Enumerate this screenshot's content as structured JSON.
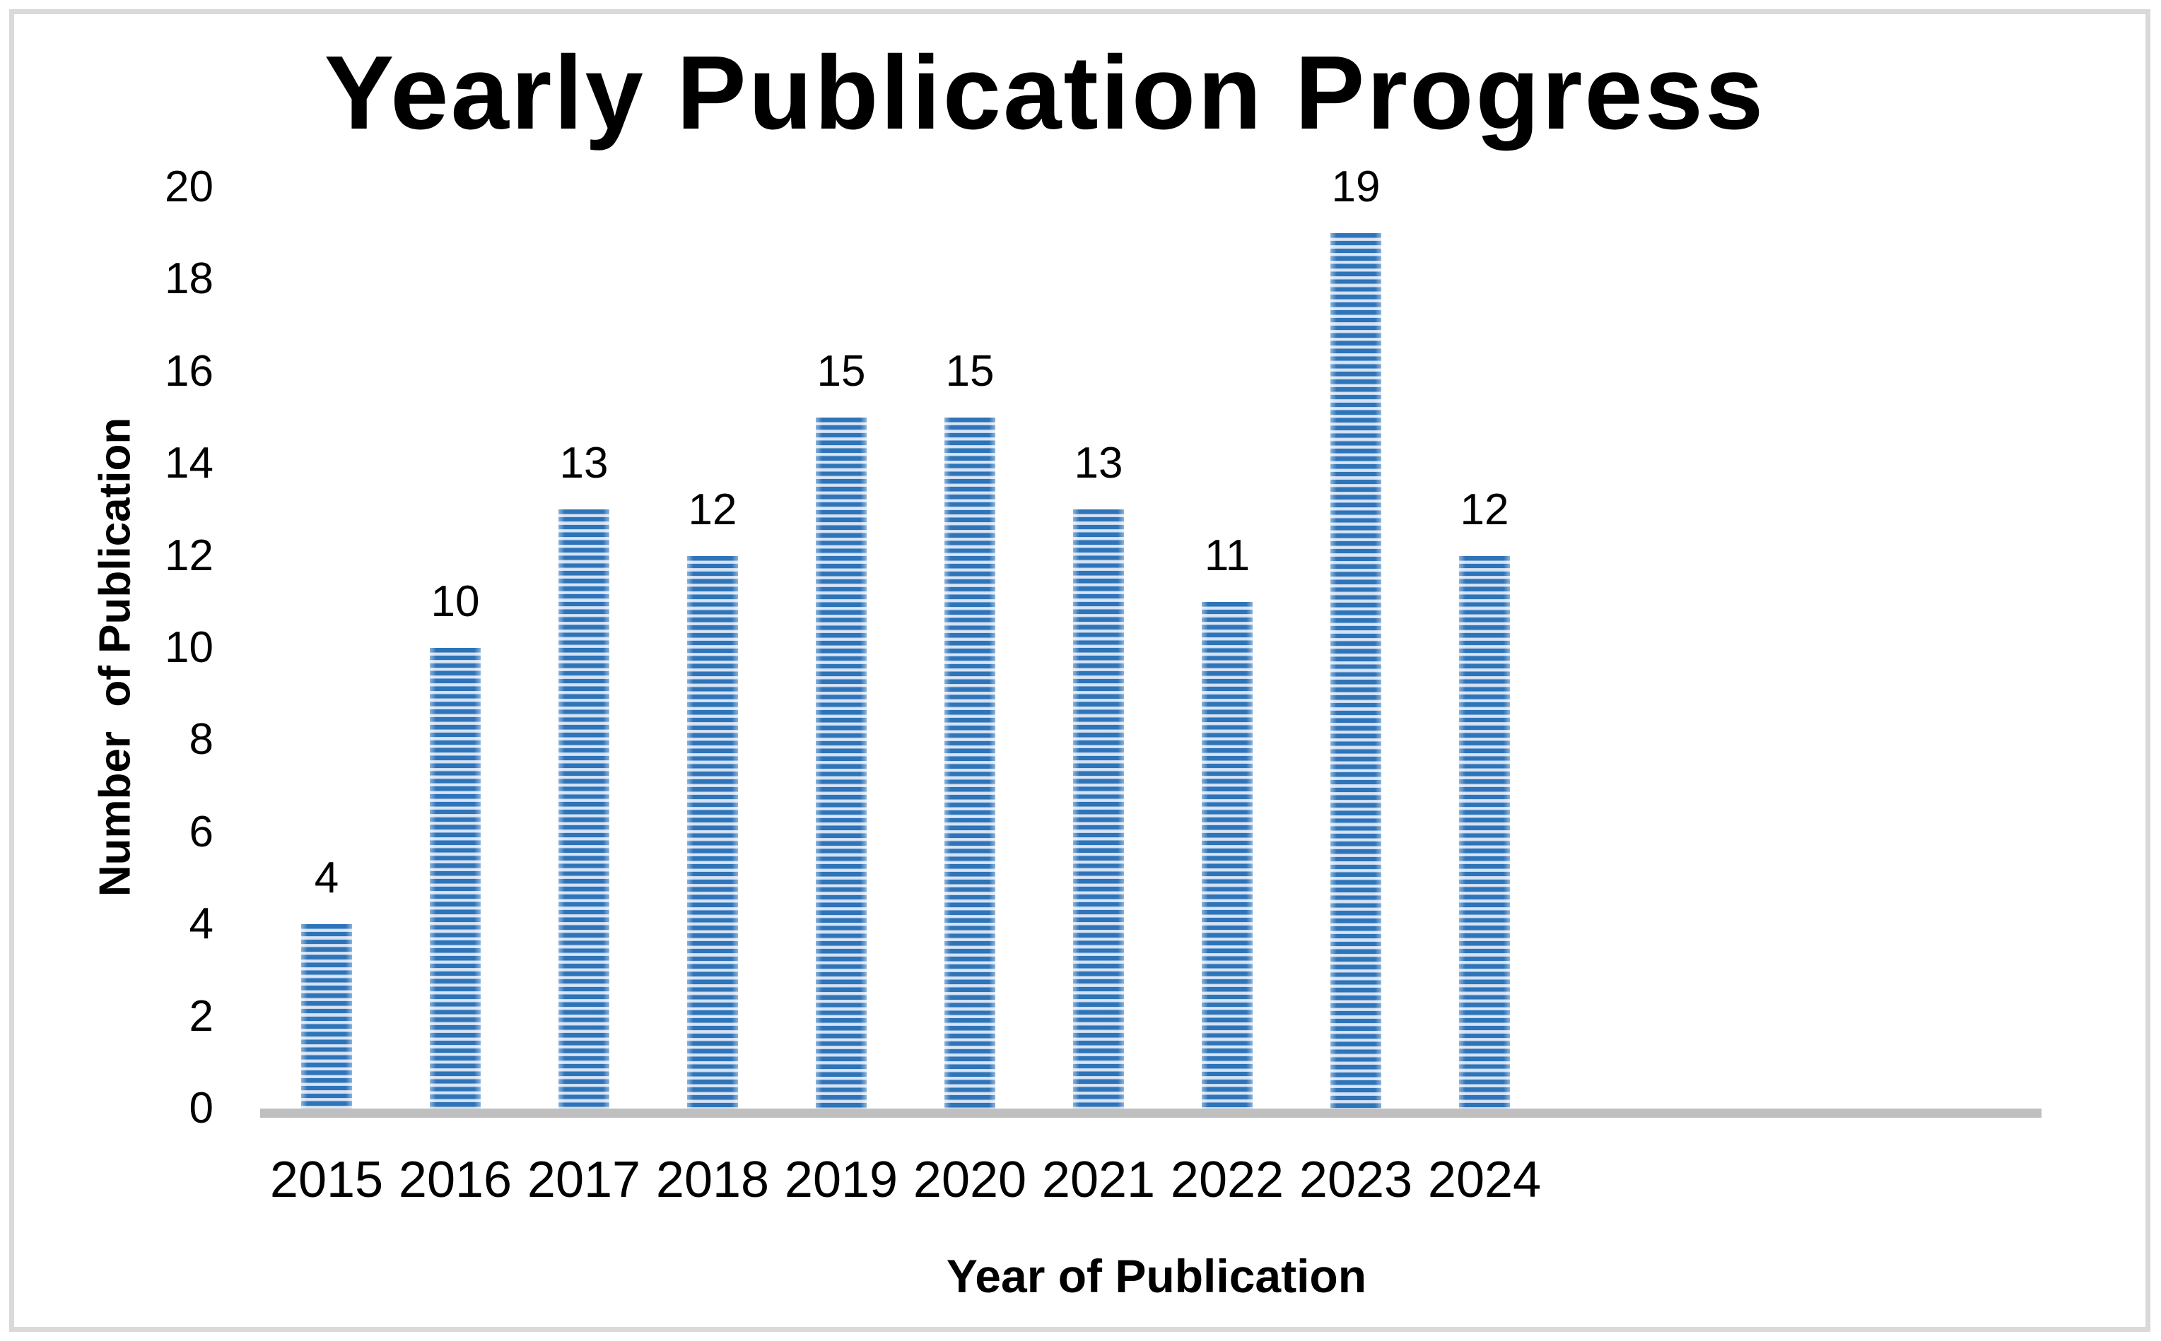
{
  "figure": {
    "title": "Yearly Publication Progress"
  },
  "chart_data": {
    "type": "bar",
    "title": "Yearly Publication Progress",
    "xlabel": "Year of Publication",
    "ylabel": "Number  of Publication",
    "categories": [
      "2015",
      "2016",
      "2017",
      "2018",
      "2019",
      "2020",
      "2021",
      "2022",
      "2023",
      "2024"
    ],
    "values": [
      4,
      10,
      13,
      12,
      15,
      15,
      13,
      11,
      19,
      12
    ],
    "data_labels": [
      "4",
      "10",
      "13",
      "12",
      "15",
      "15",
      "13",
      "11",
      "19",
      "12"
    ],
    "ylim": [
      0,
      20
    ],
    "yticks": [
      "0",
      "2",
      "4",
      "6",
      "8",
      "10",
      "12",
      "14",
      "16",
      "18",
      "20"
    ],
    "grid": false,
    "legend": null,
    "bar_fill": {
      "pattern": "horizontal-stripes",
      "stripe_color": "#2E74B8",
      "band_color": "#BFD3ED",
      "band_highlight_color": "#DFE9F7"
    },
    "axis_line_color": "#BFBFBF",
    "frame_color": "#D9D9D9",
    "text_color": "#000000"
  }
}
